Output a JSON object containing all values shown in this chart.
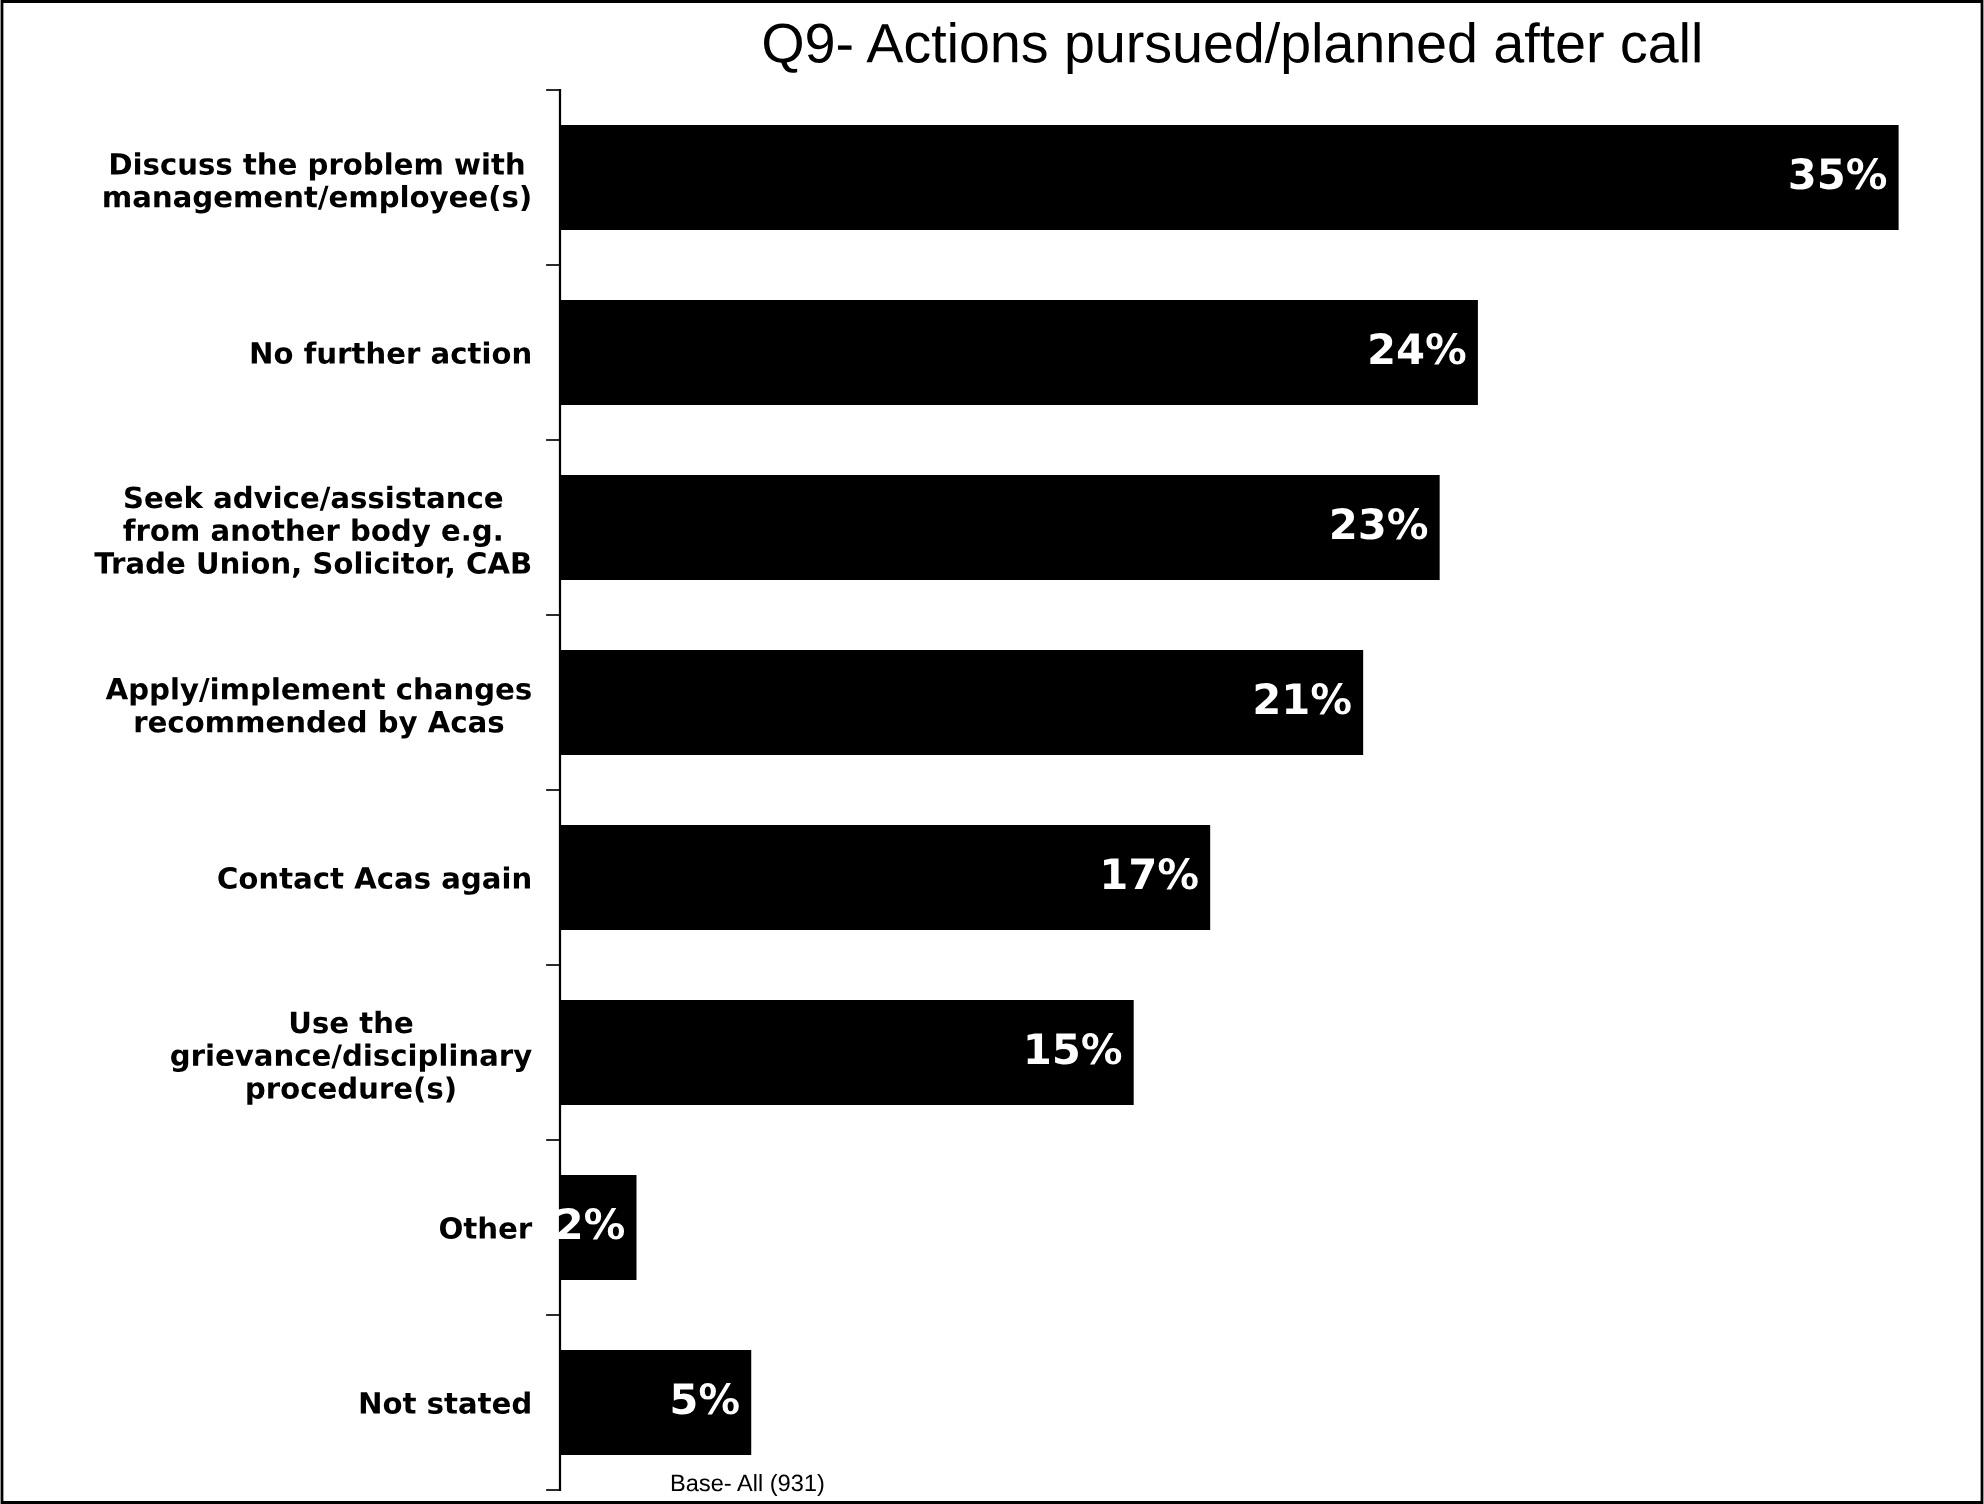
{
  "chart_data": {
    "type": "bar",
    "orientation": "horizontal",
    "title": "Q9- Actions pursued/planned after call",
    "categories": [
      "Discuss the problem with\nmanagement/employee(s)",
      "No further action",
      "Seek advice/assistance\nfrom another body e.g.\nTrade Union, Solicitor, CAB",
      "Apply/implement changes\nrecommended by Acas",
      "Contact Acas again",
      "Use the\ngrievance/disciplinary\nprocedure(s)",
      "Other",
      "Not stated"
    ],
    "values": [
      35,
      24,
      23,
      21,
      17,
      15,
      2,
      5
    ],
    "value_labels": [
      "35%",
      "24%",
      "23%",
      "21%",
      "17%",
      "15%",
      "2%",
      "5%"
    ],
    "color": "#000000",
    "annotations": [
      "Base- All (931)"
    ]
  }
}
